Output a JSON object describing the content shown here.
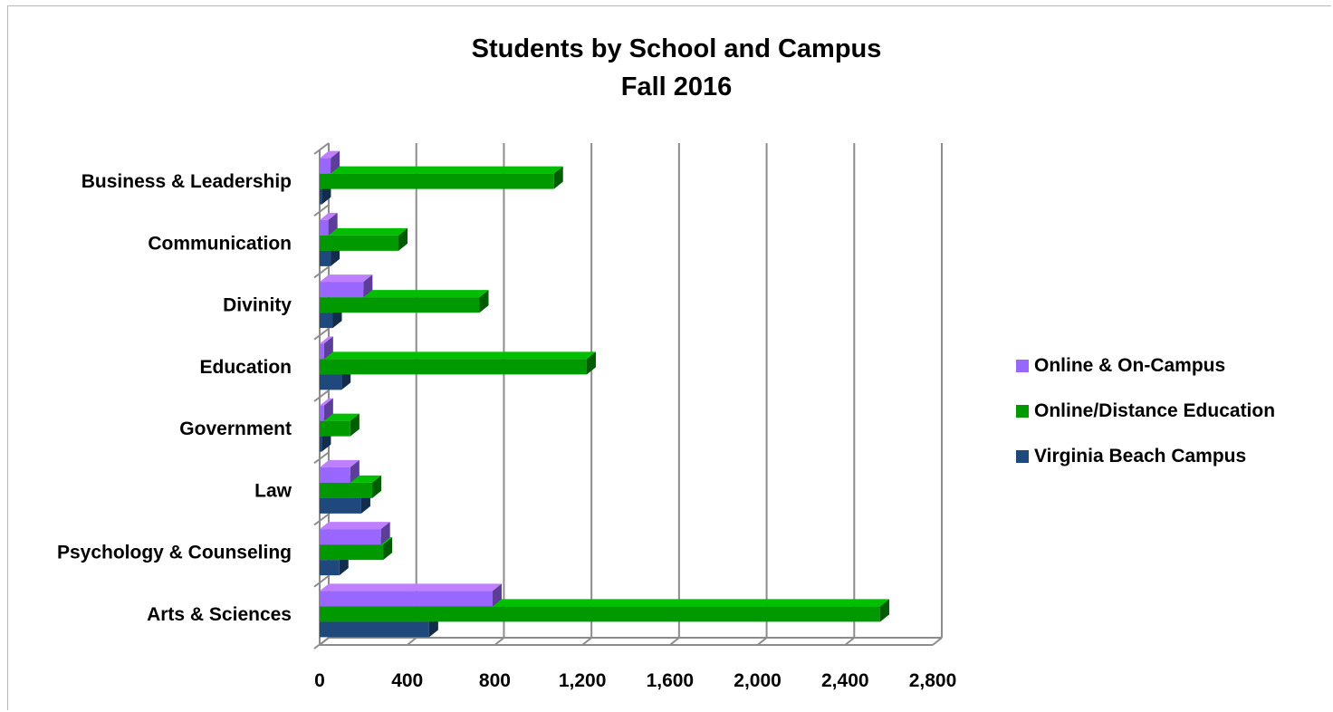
{
  "chart_data": {
    "type": "bar",
    "orientation": "horizontal",
    "style": "3d",
    "title": "Students by School and Campus",
    "subtitle": "Fall 2016",
    "categories": [
      "Arts & Sciences",
      "Psychology & Counseling",
      "Law",
      "Government",
      "Education",
      "Divinity",
      "Communication",
      "Business & Leadership"
    ],
    "series": [
      {
        "name": "Virginia Beach Campus",
        "color": "#1f497d",
        "values": [
          500,
          90,
          190,
          10,
          100,
          60,
          50,
          10
        ]
      },
      {
        "name": "Online/Distance Education",
        "color": "#009900",
        "values": [
          2560,
          290,
          240,
          140,
          1220,
          730,
          360,
          1070
        ]
      },
      {
        "name": "Online & On-Campus",
        "color": "#9966ff",
        "values": [
          790,
          280,
          140,
          20,
          20,
          200,
          40,
          50
        ]
      }
    ],
    "xlim": [
      0,
      2800
    ],
    "xticks": [
      "0",
      "400",
      "800",
      "1,200",
      "1,600",
      "2,000",
      "2,400",
      "2,800"
    ],
    "grid": true,
    "legend_position": "right",
    "legend_order": [
      "Online & On-Campus",
      "Online/Distance Education",
      "Virginia Beach Campus"
    ]
  }
}
